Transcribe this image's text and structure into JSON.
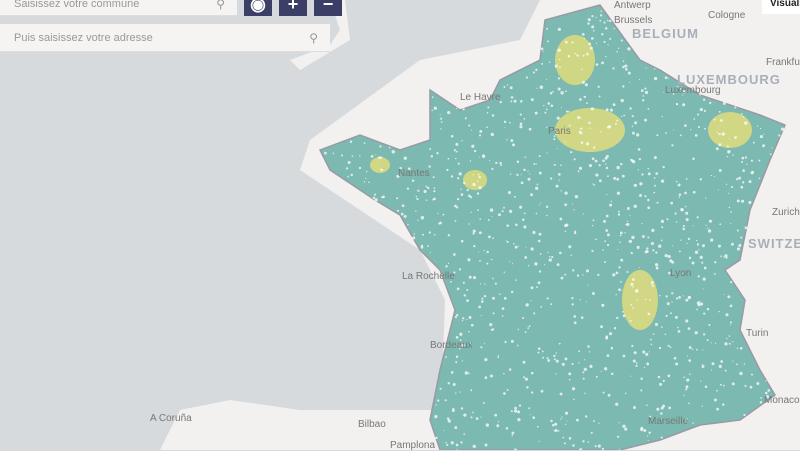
{
  "search": {
    "commune_placeholder": "Saisissez votre commune",
    "address_placeholder": "Puis saisissez votre adresse",
    "icon": "search-icon"
  },
  "controls": {
    "locate_icon": "target-icon",
    "zoom_in": "+",
    "zoom_out": "−",
    "visualize_label": "Visuali"
  },
  "map": {
    "colors": {
      "sea": "#d6dadc",
      "land": "#f2f1ef",
      "coverage": "#7cb9b0",
      "highlight": "#e6df7a",
      "border": "#9a9aa4"
    },
    "countries": [
      "BELGIUM",
      "LUXEMBOURG",
      "SWITZER"
    ],
    "cities": [
      "Antwerp",
      "Brussels",
      "Cologne",
      "Luxembourg",
      "Frankfur",
      "Zurich",
      "Turin",
      "Monaco",
      "Marseille",
      "Le Havre",
      "Paris",
      "Nantes",
      "La Rochelle",
      "Bordeaux",
      "Lyon",
      "Bilbao",
      "Pamplona",
      "A Coruña"
    ]
  }
}
